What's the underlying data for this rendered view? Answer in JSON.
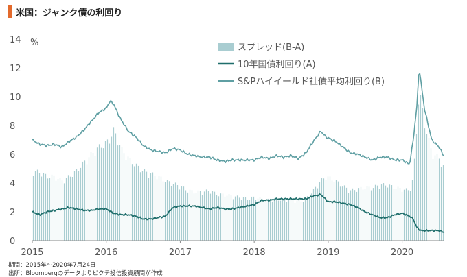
{
  "title": "米国：ジャンク債の利回り",
  "chart_data": {
    "type": "area",
    "unit_label": "%",
    "ylim": [
      0,
      14
    ],
    "y_ticks": [
      "0",
      "2",
      "4",
      "6",
      "8",
      "10",
      "12",
      "14"
    ],
    "x_ticks": [
      "2015",
      "2016",
      "2017",
      "2018",
      "2019",
      "2020"
    ],
    "xlim": [
      2015.0,
      2020.57
    ],
    "grid": false,
    "legend_position": "top-right",
    "colors": {
      "spread": "#a9cdd1",
      "treasury": "#1f6e6b",
      "hy": "#5f9fa3"
    },
    "series": [
      {
        "name": "スプレッド(B-A)",
        "style": "bar",
        "x": [
          2015.0,
          2015.1,
          2015.2,
          2015.3,
          2015.4,
          2015.5,
          2015.6,
          2015.7,
          2015.8,
          2015.9,
          2016.0,
          2016.05,
          2016.1,
          2016.15,
          2016.2,
          2016.3,
          2016.4,
          2016.5,
          2016.6,
          2016.7,
          2016.8,
          2016.9,
          2017.0,
          2017.1,
          2017.2,
          2017.3,
          2017.4,
          2017.5,
          2017.6,
          2017.7,
          2017.8,
          2017.9,
          2018.0,
          2018.1,
          2018.2,
          2018.3,
          2018.4,
          2018.5,
          2018.6,
          2018.7,
          2018.8,
          2018.9,
          2018.97,
          2019.1,
          2019.2,
          2019.3,
          2019.4,
          2019.5,
          2019.6,
          2019.7,
          2019.8,
          2019.9,
          2020.0,
          2020.1,
          2020.15,
          2020.2,
          2020.23,
          2020.3,
          2020.4,
          2020.5,
          2020.56
        ],
        "values": [
          5.0,
          4.9,
          4.6,
          4.6,
          4.3,
          4.6,
          5.0,
          5.6,
          6.2,
          6.7,
          7.0,
          7.3,
          7.9,
          7.4,
          6.6,
          5.9,
          5.4,
          5.0,
          4.8,
          4.6,
          4.3,
          4.1,
          3.9,
          3.6,
          3.5,
          3.5,
          3.6,
          3.3,
          3.3,
          3.2,
          3.1,
          3.0,
          3.1,
          3.0,
          2.9,
          3.0,
          2.9,
          3.0,
          2.8,
          3.0,
          3.6,
          4.3,
          4.6,
          4.3,
          3.9,
          3.6,
          3.7,
          3.8,
          3.8,
          4.0,
          4.0,
          3.8,
          3.7,
          3.6,
          4.5,
          8.2,
          10.9,
          8.5,
          6.3,
          5.9,
          5.3
        ]
      },
      {
        "name": "10年国債利回り(A)",
        "style": "line",
        "x": [
          2015.0,
          2015.1,
          2015.2,
          2015.3,
          2015.4,
          2015.5,
          2015.6,
          2015.7,
          2015.8,
          2015.9,
          2016.0,
          2016.1,
          2016.2,
          2016.3,
          2016.4,
          2016.5,
          2016.6,
          2016.7,
          2016.8,
          2016.9,
          2017.0,
          2017.1,
          2017.2,
          2017.3,
          2017.4,
          2017.5,
          2017.6,
          2017.7,
          2017.8,
          2017.9,
          2018.0,
          2018.1,
          2018.2,
          2018.3,
          2018.4,
          2018.5,
          2018.6,
          2018.7,
          2018.8,
          2018.9,
          2019.0,
          2019.1,
          2019.2,
          2019.3,
          2019.4,
          2019.5,
          2019.6,
          2019.7,
          2019.8,
          2019.9,
          2020.0,
          2020.1,
          2020.15,
          2020.2,
          2020.25,
          2020.3,
          2020.4,
          2020.5,
          2020.56
        ],
        "values": [
          2.0,
          1.8,
          2.0,
          2.1,
          2.2,
          2.3,
          2.2,
          2.1,
          2.1,
          2.2,
          2.2,
          1.9,
          1.8,
          1.8,
          1.7,
          1.5,
          1.5,
          1.6,
          1.7,
          2.3,
          2.4,
          2.4,
          2.4,
          2.3,
          2.2,
          2.3,
          2.2,
          2.2,
          2.3,
          2.4,
          2.5,
          2.8,
          2.8,
          2.9,
          2.9,
          2.9,
          2.9,
          2.9,
          3.1,
          3.2,
          2.7,
          2.7,
          2.6,
          2.5,
          2.3,
          2.0,
          1.8,
          1.6,
          1.6,
          1.8,
          1.9,
          1.7,
          1.5,
          0.9,
          0.7,
          0.7,
          0.7,
          0.7,
          0.6
        ]
      },
      {
        "name": "S&Pハイイールド社債平均利回り(B)",
        "style": "line",
        "x": [
          2015.0,
          2015.1,
          2015.2,
          2015.3,
          2015.4,
          2015.5,
          2015.6,
          2015.7,
          2015.8,
          2015.9,
          2016.0,
          2016.05,
          2016.1,
          2016.15,
          2016.2,
          2016.3,
          2016.4,
          2016.5,
          2016.6,
          2016.7,
          2016.8,
          2016.9,
          2017.0,
          2017.1,
          2017.2,
          2017.3,
          2017.4,
          2017.5,
          2017.6,
          2017.7,
          2017.8,
          2017.9,
          2018.0,
          2018.1,
          2018.2,
          2018.3,
          2018.4,
          2018.5,
          2018.6,
          2018.7,
          2018.8,
          2018.9,
          2018.97,
          2019.1,
          2019.2,
          2019.3,
          2019.4,
          2019.5,
          2019.6,
          2019.7,
          2019.8,
          2019.9,
          2020.0,
          2020.1,
          2020.15,
          2020.2,
          2020.23,
          2020.3,
          2020.4,
          2020.5,
          2020.56
        ],
        "values": [
          7.0,
          6.7,
          6.6,
          6.7,
          6.5,
          6.9,
          7.2,
          7.7,
          8.3,
          8.9,
          9.2,
          9.7,
          9.5,
          8.9,
          8.4,
          7.6,
          7.2,
          6.6,
          6.3,
          6.2,
          6.1,
          6.4,
          6.3,
          6.0,
          5.9,
          5.8,
          5.8,
          5.6,
          5.5,
          5.6,
          5.6,
          5.6,
          5.6,
          5.8,
          5.7,
          5.9,
          5.8,
          5.9,
          5.7,
          6.1,
          6.9,
          7.6,
          7.2,
          6.9,
          6.5,
          6.1,
          6.0,
          5.8,
          5.6,
          5.8,
          5.8,
          5.6,
          5.6,
          5.3,
          7.0,
          9.4,
          12.0,
          9.2,
          7.0,
          6.5,
          5.9
        ]
      }
    ]
  },
  "footer": {
    "period": "期間：2015年～2020年7月24日",
    "source": "出所：Bloombergのデータよりピクテ投信投資顧問が作成"
  }
}
